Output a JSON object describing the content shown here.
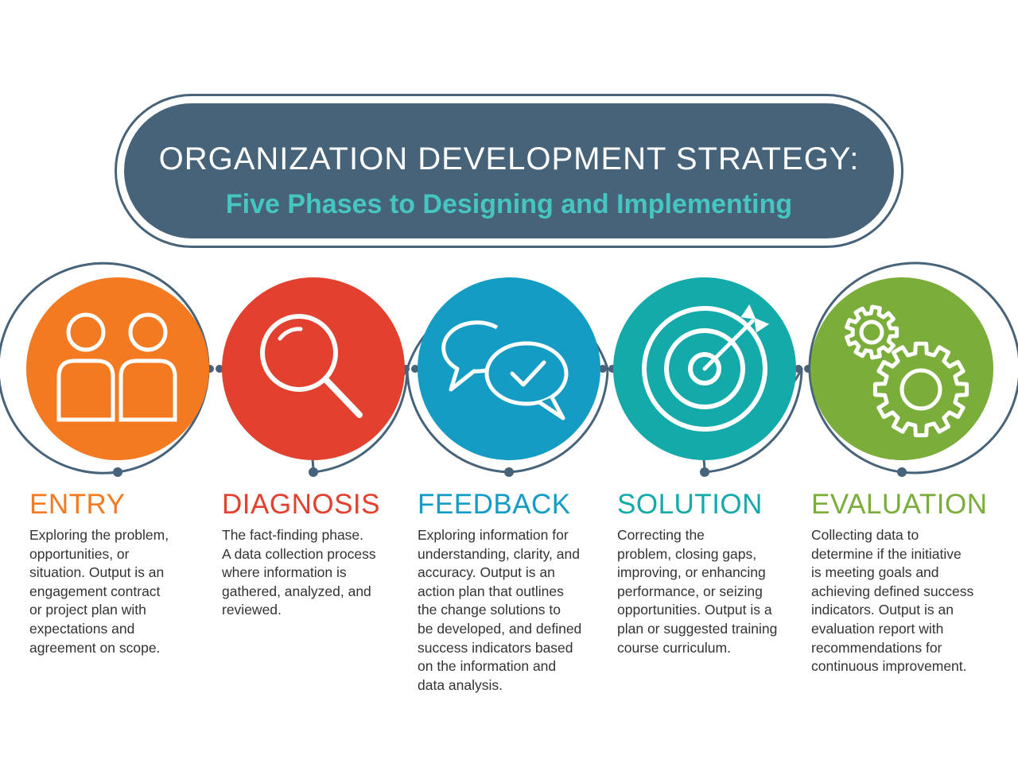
{
  "title": {
    "main": "ORGANIZATION DEVELOPMENT STRATEGY:",
    "subtitle": "Five Phases to Designing and Implementing"
  },
  "colors": {
    "navy": "#47637a",
    "teal_text": "#45c6c1"
  },
  "phases": [
    {
      "name": "ENTRY",
      "color": "#f37a21",
      "icon": "people-icon",
      "description": "Exploring the problem,\nopportunities, or\nsituation. Output is an\nengagement contract\nor project plan with\nexpectations and\nagreement on scope."
    },
    {
      "name": "DIAGNOSIS",
      "color": "#e2412f",
      "icon": "magnifying-glass-icon",
      "description": "The fact-finding phase.\nA data collection process\nwhere information is\ngathered, analyzed, and\nreviewed."
    },
    {
      "name": "FEEDBACK",
      "color": "#159cc4",
      "icon": "chat-bubbles-icon",
      "description": "Exploring information for\nunderstanding, clarity, and\naccuracy. Output is an\naction plan that outlines\nthe change solutions to\nbe developed, and defined\nsuccess indicators based\non the information and\ndata analysis."
    },
    {
      "name": "SOLUTION",
      "color": "#14aaa9",
      "icon": "target-icon",
      "description": "Correcting the\nproblem, closing gaps,\nimproving, or enhancing\nperformance, or seizing\nopportunities. Output is a\nplan or suggested training\ncourse curriculum."
    },
    {
      "name": "EVALUATION",
      "color": "#7aad3a",
      "icon": "gears-icon",
      "description": "Collecting data to\ndetermine if the initiative\nis meeting goals and\nachieving defined success\nindicators. Output is an\nevaluation report with\nrecommendations for\ncontinuous improvement."
    }
  ]
}
